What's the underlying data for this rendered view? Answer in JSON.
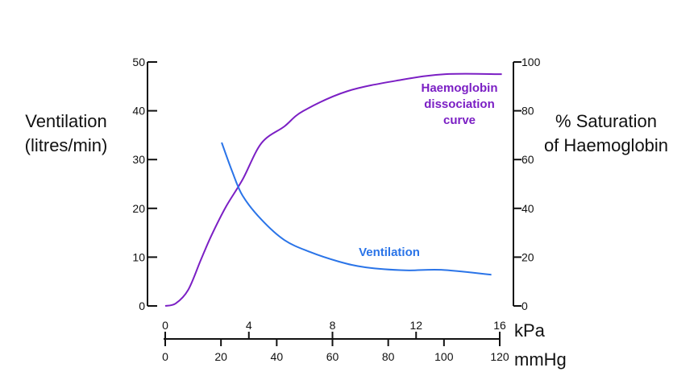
{
  "chart_data": {
    "type": "line",
    "title": "",
    "left_axis": {
      "label_lines": [
        "Ventilation",
        "(litres/min)"
      ],
      "range": [
        0,
        50
      ],
      "ticks": [
        0,
        10,
        20,
        30,
        40,
        50
      ]
    },
    "right_axis": {
      "label_lines": [
        "% Saturation",
        "of Haemoglobin"
      ],
      "range": [
        0,
        100
      ],
      "ticks": [
        0,
        20,
        40,
        60,
        80,
        100
      ]
    },
    "x_axis_kpa": {
      "unit": "kPa",
      "range": [
        0,
        16
      ],
      "ticks": [
        0,
        4,
        8,
        12,
        16
      ]
    },
    "x_axis_mmhg": {
      "unit": "mmHg",
      "range": [
        0,
        120
      ],
      "ticks": [
        0,
        20,
        40,
        60,
        80,
        100,
        120
      ]
    },
    "grid": false,
    "series": [
      {
        "name_lines": [
          "Haemoglobin",
          "dissociation",
          "curve"
        ],
        "axis": "right",
        "color": "#7B1FC4",
        "x": [
          0,
          0.5,
          1.1,
          1.7,
          2.2,
          2.9,
          3.7,
          4.6,
          5.7,
          6.6,
          8.7,
          11.3,
          13.4,
          16.1
        ],
        "y": [
          0,
          1,
          6.6,
          18.8,
          28.7,
          40.6,
          51.8,
          66.7,
          73.6,
          79.9,
          88,
          92.7,
          95,
          95
        ]
      },
      {
        "name_lines": [
          "Ventilation"
        ],
        "axis": "left",
        "color": "#2A74E8",
        "x": [
          2.7,
          3.2,
          3.7,
          4.6,
          5.7,
          6.9,
          8.3,
          9.6,
          11.5,
          13.2,
          15.6
        ],
        "y": [
          33.5,
          27.6,
          22.6,
          17.7,
          13.5,
          11.1,
          9.1,
          7.9,
          7.3,
          7.4,
          6.4
        ]
      }
    ]
  }
}
